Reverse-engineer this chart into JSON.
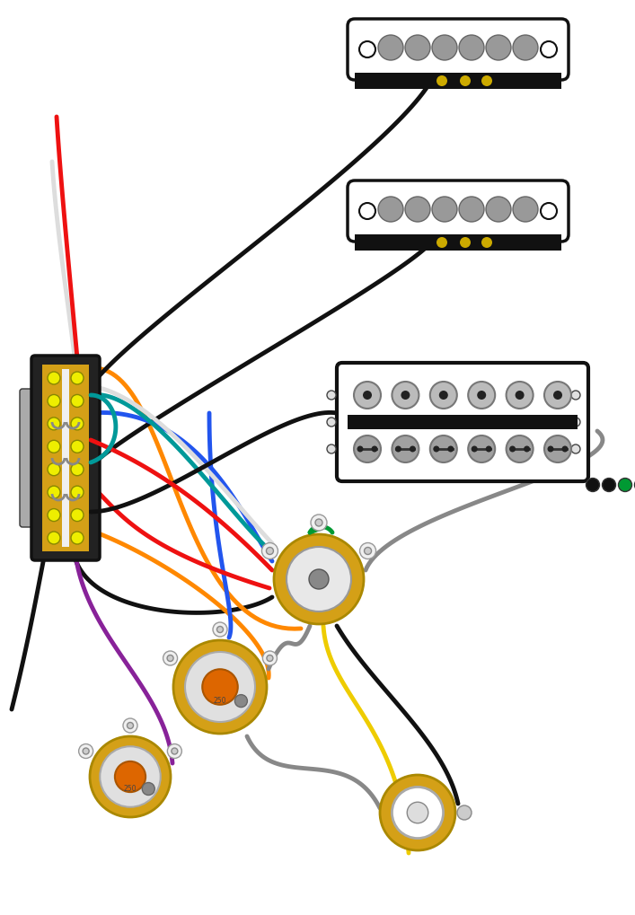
{
  "bg_color": "#ffffff",
  "wire_black": "#111111",
  "wire_red": "#ee1111",
  "wire_orange": "#ff8800",
  "wire_blue": "#2255ee",
  "wire_gray": "#888888",
  "wire_yellow": "#eecc00",
  "wire_purple": "#882299",
  "wire_green": "#009933",
  "wire_teal": "#009999",
  "wire_white": "#dddddd",
  "pole_color": "#999999",
  "gold_color": "#d4a017",
  "switch_gold": "#ccaa00",
  "lug_color": "#cccccc"
}
